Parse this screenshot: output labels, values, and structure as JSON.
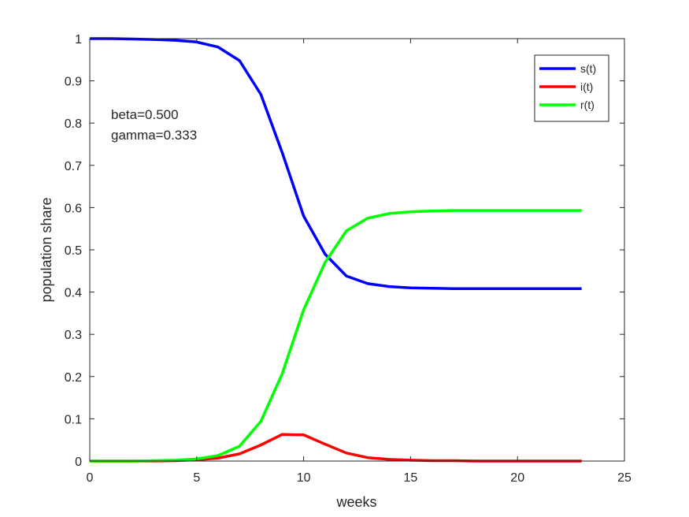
{
  "chart_data": {
    "type": "line",
    "xlabel": "weeks",
    "ylabel": "population share",
    "xlim": [
      0,
      25
    ],
    "ylim": [
      0,
      1
    ],
    "xticks": [
      "0",
      "5",
      "10",
      "15",
      "20",
      "25"
    ],
    "yticks": [
      "0",
      "0.1",
      "0.2",
      "0.3",
      "0.4",
      "0.5",
      "0.6",
      "0.7",
      "0.8",
      "0.9",
      "1"
    ],
    "grid": false,
    "legend_position": "top-right",
    "annotations": [
      "beta=0.500",
      "gamma=0.333"
    ],
    "x": [
      0,
      1,
      2,
      3,
      4,
      5,
      6,
      7,
      8,
      9,
      10,
      11,
      12,
      13,
      14,
      15,
      16,
      17,
      18,
      19,
      20,
      21,
      22,
      23
    ],
    "series": [
      {
        "name": "s(t)",
        "color": "#0000ff",
        "values": [
          1.0,
          1.0,
          0.999,
          0.998,
          0.996,
          0.992,
          0.98,
          0.948,
          0.868,
          0.73,
          0.58,
          0.49,
          0.438,
          0.42,
          0.413,
          0.41,
          0.409,
          0.408,
          0.408,
          0.408,
          0.408,
          0.408,
          0.408,
          0.408
        ]
      },
      {
        "name": "i(t)",
        "color": "#ff0000",
        "values": [
          0.0,
          0.0,
          0.0,
          0.0,
          0.001,
          0.003,
          0.007,
          0.017,
          0.038,
          0.063,
          0.062,
          0.04,
          0.019,
          0.008,
          0.004,
          0.002,
          0.001,
          0.001,
          0.0,
          0.0,
          0.0,
          0.0,
          0.0,
          0.0
        ]
      },
      {
        "name": "r(t)",
        "color": "#00ff00",
        "values": [
          0.0,
          0.0,
          0.0,
          0.001,
          0.002,
          0.005,
          0.013,
          0.035,
          0.094,
          0.207,
          0.358,
          0.47,
          0.545,
          0.575,
          0.586,
          0.59,
          0.592,
          0.593,
          0.593,
          0.593,
          0.593,
          0.593,
          0.593,
          0.593
        ]
      }
    ]
  }
}
